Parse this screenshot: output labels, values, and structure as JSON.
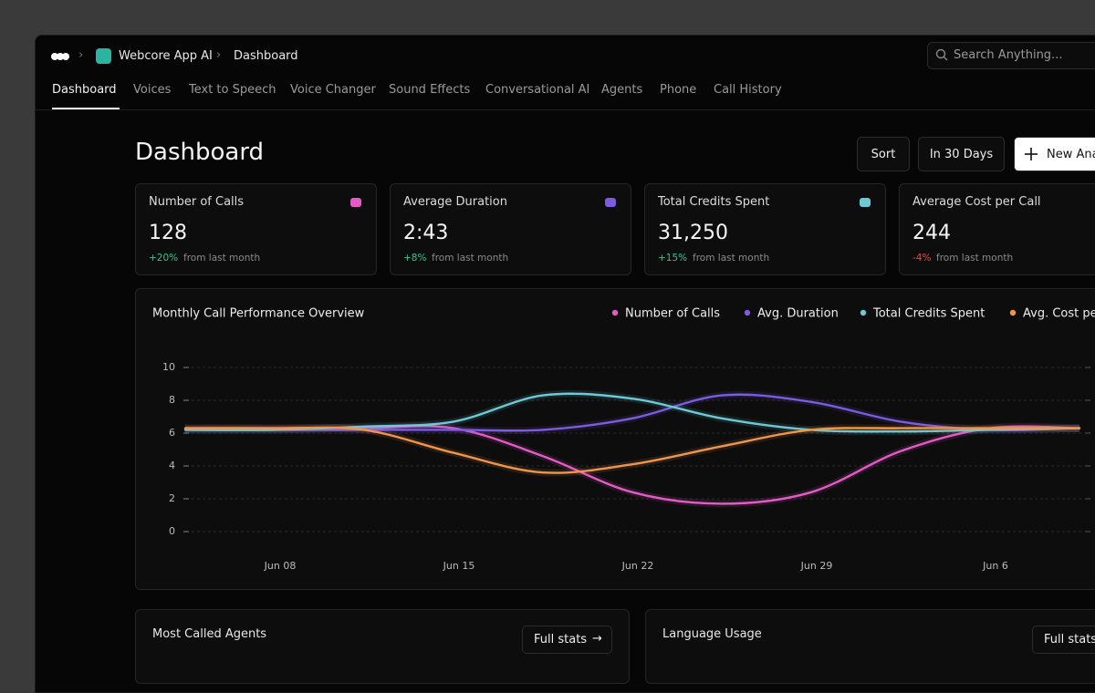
{
  "nav": {
    "breadcrumb": [
      "Webcore App AI",
      "Dashboard"
    ],
    "search_placeholder": "Search Anything...",
    "tabs": [
      "Dashboard",
      "Voices",
      "Text to Speech",
      "Voice Changer",
      "Sound Effects",
      "Conversational AI",
      "Agents",
      "Phone",
      "Call History"
    ],
    "active_tab": 0
  },
  "header": {
    "title": "Dashboard",
    "buttons": [
      "Sort",
      "In 30 Days",
      "New Analysis"
    ]
  },
  "stats": [
    {
      "label": "Number of Calls",
      "value": "128",
      "change": "+20%",
      "note": "from last month"
    },
    {
      "label": "Average Duration",
      "value": "2:43",
      "change": "+8%",
      "note": "from last month"
    },
    {
      "label": "Total Credits Spent",
      "value": "31,250",
      "change": "+15%",
      "note": "from last month"
    },
    {
      "label": "Average Cost per Call",
      "value": "244",
      "change": "-4%",
      "note": "from last month"
    }
  ],
  "chart": {
    "type": "line",
    "title": "Monthly Call Performance Overview",
    "categories": [
      null,
      "Jun 08",
      null,
      "Jun 15",
      null,
      "Jun 22",
      null,
      "Jun 29",
      null,
      "Jun 6",
      null
    ],
    "series": [
      {
        "name": "Number of Calls",
        "color": "#e45bc8",
        "values": [
          6.3,
          6.3,
          6.3,
          6.3,
          4.6,
          2.4,
          1.7,
          2.4,
          4.9,
          6.3,
          6.3
        ]
      },
      {
        "name": "Avg. Duration",
        "color": "#7b5ce0",
        "values": [
          6.2,
          6.2,
          6.2,
          6.2,
          6.2,
          6.9,
          8.3,
          7.9,
          6.7,
          6.2,
          6.3
        ]
      },
      {
        "name": "Total Credits Spent",
        "color": "#6cc9d6",
        "values": [
          6.2,
          6.2,
          6.4,
          6.7,
          8.3,
          8.1,
          6.9,
          6.2,
          6.1,
          6.2,
          6.3
        ]
      },
      {
        "name": "Avg. Cost per Call",
        "color": "#f0964a",
        "values": [
          6.3,
          6.3,
          6.2,
          4.8,
          3.6,
          4.1,
          5.2,
          6.2,
          6.3,
          6.3,
          6.3
        ]
      }
    ],
    "ylim": [
      0,
      10
    ],
    "yticks": [
      0,
      2,
      4,
      6,
      8,
      10
    ],
    "grid": true
  },
  "panels": [
    {
      "title": "Most Called Agents",
      "button": "Full stats"
    },
    {
      "title": "Language Usage",
      "button": "Full stats"
    }
  ]
}
